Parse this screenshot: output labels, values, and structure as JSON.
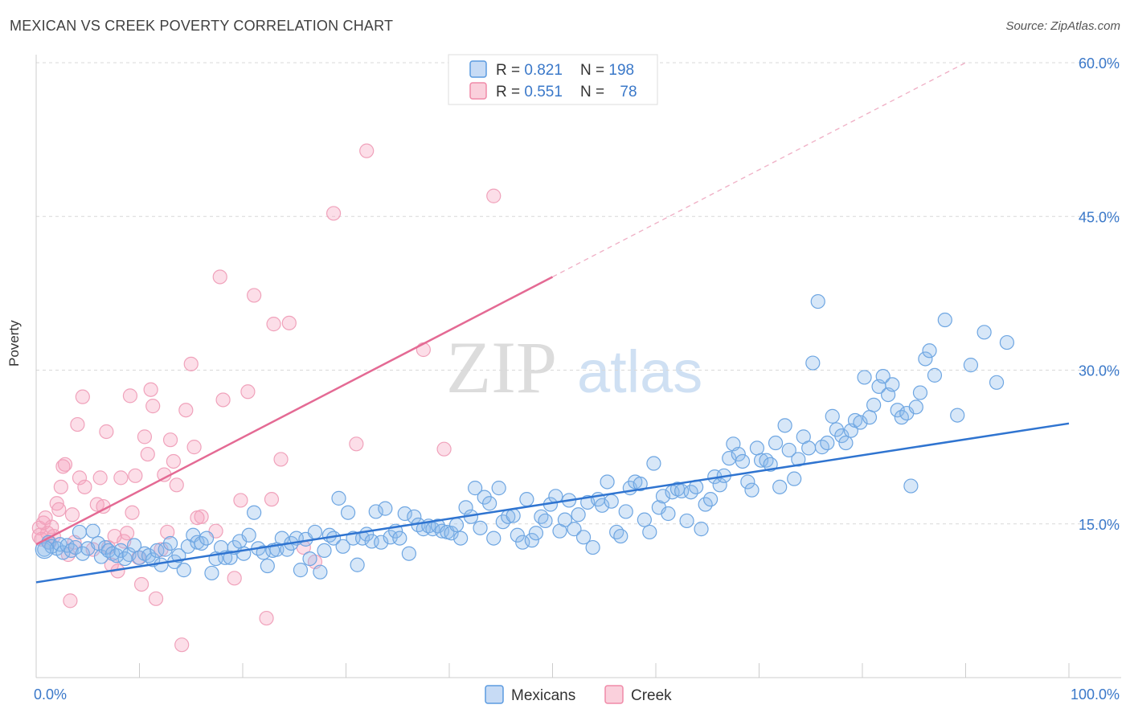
{
  "header": {
    "title": "MEXICAN VS CREEK POVERTY CORRELATION CHART",
    "source": "Source: ZipAtlas.com"
  },
  "watermark": {
    "zip": "ZIP",
    "atlas": "atlas"
  },
  "legend_top": {
    "rows": [
      {
        "r_label": "R = ",
        "r_value": "0.821",
        "n_label": "N = ",
        "n_value": "198",
        "color": "#5b9be0"
      },
      {
        "r_label": "R = ",
        "r_value": "0.551",
        "n_label": "N = ",
        "n_value": "78",
        "color": "#f08aa8"
      }
    ]
  },
  "legend_bottom": {
    "items": [
      "Mexicans",
      "Creek"
    ]
  },
  "chart_data": {
    "type": "scatter",
    "ylabel": "Poverty",
    "xlim": [
      0,
      100
    ],
    "ylim": [
      0,
      60
    ],
    "x_tick_labels": [
      "0.0%",
      "100.0%"
    ],
    "y_ticks": [
      15,
      30,
      45,
      60
    ],
    "y_tick_labels": [
      "15.0%",
      "30.0%",
      "45.0%",
      "60.0%"
    ],
    "series": [
      {
        "name": "Mexicans",
        "color": "#5b9be0",
        "trend": {
          "x": [
            0,
            100
          ],
          "y": [
            9.3,
            24.8
          ]
        },
        "points": [
          [
            0.8,
            12.5
          ],
          [
            1.2,
            13.2
          ],
          [
            1.5,
            12.8
          ],
          [
            2,
            12.6
          ],
          [
            2.3,
            13
          ],
          [
            2.6,
            12.2
          ],
          [
            3,
            12.9
          ],
          [
            3.4,
            12.4
          ],
          [
            3.8,
            12.7
          ],
          [
            4.2,
            14.2
          ],
          [
            4.5,
            12.1
          ],
          [
            5,
            12.6
          ],
          [
            5.5,
            14.3
          ],
          [
            6,
            13.1
          ],
          [
            6.3,
            11.8
          ],
          [
            6.7,
            12.7
          ],
          [
            7,
            12.4
          ],
          [
            7.4,
            12.1
          ],
          [
            7.8,
            11.9
          ],
          [
            8.2,
            12.4
          ],
          [
            8.6,
            11.6
          ],
          [
            9,
            12
          ],
          [
            9.5,
            12.9
          ],
          [
            10,
            11.7
          ],
          [
            10.5,
            12.1
          ],
          [
            10.9,
            11.9
          ],
          [
            11.3,
            11.5
          ],
          [
            11.7,
            12.4
          ],
          [
            12.1,
            11
          ],
          [
            12.5,
            12.5
          ],
          [
            13,
            13.1
          ],
          [
            13.4,
            11.3
          ],
          [
            13.8,
            11.9
          ],
          [
            14.3,
            10.5
          ],
          [
            14.7,
            12.8
          ],
          [
            15.2,
            13.9
          ],
          [
            15.6,
            13.2
          ],
          [
            16,
            13.1
          ],
          [
            16.5,
            13.6
          ],
          [
            17,
            10.2
          ],
          [
            17.4,
            11.6
          ],
          [
            17.9,
            12.7
          ],
          [
            18.3,
            11.7
          ],
          [
            18.8,
            11.7
          ],
          [
            19.2,
            12.7
          ],
          [
            19.7,
            13.3
          ],
          [
            20.1,
            12.1
          ],
          [
            20.6,
            13.9
          ],
          [
            21.1,
            16.1
          ],
          [
            21.5,
            12.6
          ],
          [
            22,
            12.2
          ],
          [
            22.4,
            10.9
          ],
          [
            22.9,
            12.4
          ],
          [
            23.3,
            12.5
          ],
          [
            23.8,
            13.6
          ],
          [
            24.3,
            12.5
          ],
          [
            24.7,
            13.1
          ],
          [
            25.2,
            13.6
          ],
          [
            25.6,
            10.5
          ],
          [
            26.1,
            13.5
          ],
          [
            26.5,
            11.6
          ],
          [
            27,
            14.2
          ],
          [
            27.5,
            10.3
          ],
          [
            27.9,
            12.4
          ],
          [
            28.4,
            13.9
          ],
          [
            28.8,
            13.6
          ],
          [
            29.3,
            17.5
          ],
          [
            29.7,
            12.8
          ],
          [
            30.2,
            16.1
          ],
          [
            30.7,
            13.6
          ],
          [
            31.1,
            11
          ],
          [
            31.6,
            13.6
          ],
          [
            32,
            14
          ],
          [
            32.5,
            13.3
          ],
          [
            32.9,
            16.2
          ],
          [
            33.4,
            13.2
          ],
          [
            33.8,
            16.5
          ],
          [
            34.3,
            13.7
          ],
          [
            34.8,
            14.3
          ],
          [
            35.2,
            13.6
          ],
          [
            35.7,
            16
          ],
          [
            36.1,
            12.1
          ],
          [
            36.6,
            15.7
          ],
          [
            37,
            14.9
          ],
          [
            37.5,
            14.5
          ],
          [
            38,
            14.8
          ],
          [
            38.4,
            14.5
          ],
          [
            38.9,
            14.8
          ],
          [
            39.3,
            14.3
          ],
          [
            39.8,
            14.2
          ],
          [
            40.2,
            14.1
          ],
          [
            40.7,
            14.9
          ],
          [
            41.1,
            13.6
          ],
          [
            41.6,
            16.6
          ],
          [
            42.1,
            15.7
          ],
          [
            42.5,
            18.5
          ],
          [
            43,
            14.6
          ],
          [
            43.4,
            17.6
          ],
          [
            43.9,
            17
          ],
          [
            44.3,
            13.6
          ],
          [
            44.8,
            18.5
          ],
          [
            45.2,
            15.2
          ],
          [
            45.7,
            15.7
          ],
          [
            46.2,
            15.8
          ],
          [
            46.6,
            13.9
          ],
          [
            47.1,
            13.2
          ],
          [
            47.5,
            17.4
          ],
          [
            48,
            13.4
          ],
          [
            48.4,
            14.1
          ],
          [
            48.9,
            15.7
          ],
          [
            49.3,
            15.3
          ],
          [
            49.8,
            16.9
          ],
          [
            50.3,
            17.7
          ],
          [
            50.7,
            14.3
          ],
          [
            51.2,
            15.4
          ],
          [
            51.6,
            17.3
          ],
          [
            52.1,
            14.5
          ],
          [
            52.5,
            15.9
          ],
          [
            53,
            13.7
          ],
          [
            53.4,
            17.1
          ],
          [
            53.9,
            12.7
          ],
          [
            54.4,
            17.4
          ],
          [
            54.8,
            16.8
          ],
          [
            55.3,
            19.1
          ],
          [
            55.7,
            17.2
          ],
          [
            56.2,
            14.2
          ],
          [
            56.6,
            13.8
          ],
          [
            57.1,
            16.2
          ],
          [
            57.5,
            18.5
          ],
          [
            58,
            19.1
          ],
          [
            58.5,
            18.9
          ],
          [
            58.9,
            15.4
          ],
          [
            59.4,
            14.2
          ],
          [
            59.8,
            20.9
          ],
          [
            60.3,
            16.6
          ],
          [
            60.7,
            17.7
          ],
          [
            61.2,
            16
          ],
          [
            61.6,
            18.1
          ],
          [
            62.1,
            18.4
          ],
          [
            62.5,
            18.2
          ],
          [
            63,
            15.3
          ],
          [
            63.4,
            18.1
          ],
          [
            63.9,
            18.6
          ],
          [
            64.4,
            14.5
          ],
          [
            64.8,
            16.9
          ],
          [
            65.3,
            17.4
          ],
          [
            65.7,
            19.6
          ],
          [
            66.2,
            18.8
          ],
          [
            66.6,
            19.7
          ],
          [
            67.1,
            21.4
          ],
          [
            67.5,
            22.8
          ],
          [
            68,
            21.8
          ],
          [
            68.4,
            21.1
          ],
          [
            68.9,
            19.1
          ],
          [
            69.3,
            18.3
          ],
          [
            69.8,
            22.4
          ],
          [
            70.2,
            21.2
          ],
          [
            70.7,
            21.2
          ],
          [
            71.1,
            20.8
          ],
          [
            71.6,
            22.9
          ],
          [
            72,
            18.6
          ],
          [
            72.5,
            24.6
          ],
          [
            72.9,
            22.2
          ],
          [
            73.4,
            19.4
          ],
          [
            73.8,
            21.3
          ],
          [
            74.3,
            23.5
          ],
          [
            74.8,
            22.4
          ],
          [
            75.2,
            30.7
          ],
          [
            75.7,
            36.7
          ],
          [
            76.1,
            22.5
          ],
          [
            76.6,
            22.9
          ],
          [
            77.1,
            25.5
          ],
          [
            77.5,
            24.2
          ],
          [
            78,
            23.6
          ],
          [
            78.4,
            22.9
          ],
          [
            78.9,
            24.1
          ],
          [
            79.3,
            25.1
          ],
          [
            79.8,
            24.9
          ],
          [
            80.2,
            29.3
          ],
          [
            80.7,
            25.4
          ],
          [
            81.1,
            26.6
          ],
          [
            81.6,
            28.4
          ],
          [
            82,
            29.4
          ],
          [
            82.5,
            27.6
          ],
          [
            82.9,
            28.6
          ],
          [
            83.4,
            26.1
          ],
          [
            83.8,
            25.4
          ],
          [
            84.3,
            25.8
          ],
          [
            84.7,
            18.7
          ],
          [
            85.2,
            26.4
          ],
          [
            85.6,
            27.8
          ],
          [
            86.1,
            31.1
          ],
          [
            86.5,
            31.9
          ],
          [
            87,
            29.5
          ],
          [
            88,
            34.9
          ],
          [
            89.2,
            25.6
          ],
          [
            90.5,
            30.5
          ],
          [
            91.8,
            33.7
          ],
          [
            93,
            28.8
          ],
          [
            94,
            32.7
          ]
        ]
      },
      {
        "name": "Creek",
        "color": "#f08aa8",
        "trend": {
          "x": [
            0,
            50
          ],
          "y": [
            13,
            39.1
          ]
        },
        "trend_extension": {
          "x": [
            50,
            90
          ],
          "y": [
            39.1,
            60
          ]
        },
        "points": [
          [
            0.3,
            14.6
          ],
          [
            0.5,
            13.5
          ],
          [
            0.7,
            15.1
          ],
          [
            0.9,
            15.6
          ],
          [
            1.1,
            14.1
          ],
          [
            1.3,
            13.2
          ],
          [
            1.5,
            14.7
          ],
          [
            1.7,
            13.8
          ],
          [
            2,
            17
          ],
          [
            2.2,
            16.4
          ],
          [
            2.4,
            18.6
          ],
          [
            2.6,
            20.6
          ],
          [
            2.8,
            20.8
          ],
          [
            3.1,
            12
          ],
          [
            3.3,
            7.5
          ],
          [
            3.5,
            15.9
          ],
          [
            3.7,
            13.2
          ],
          [
            4,
            24.7
          ],
          [
            4.2,
            19.5
          ],
          [
            4.5,
            27.4
          ],
          [
            4.7,
            18.6
          ],
          [
            5.5,
            12.5
          ],
          [
            5.9,
            16.9
          ],
          [
            6.2,
            19.5
          ],
          [
            6.5,
            16.7
          ],
          [
            6.8,
            24
          ],
          [
            7,
            12.7
          ],
          [
            7.3,
            11
          ],
          [
            7.6,
            13.8
          ],
          [
            7.9,
            10.4
          ],
          [
            8.2,
            19.5
          ],
          [
            8.5,
            13.3
          ],
          [
            8.8,
            14.1
          ],
          [
            9.1,
            27.5
          ],
          [
            9.3,
            16.1
          ],
          [
            9.6,
            19.7
          ],
          [
            9.9,
            11.7
          ],
          [
            10.2,
            9.1
          ],
          [
            10.5,
            23.5
          ],
          [
            10.8,
            21.8
          ],
          [
            11.1,
            28.1
          ],
          [
            11.3,
            26.5
          ],
          [
            11.6,
            7.7
          ],
          [
            12.1,
            12.5
          ],
          [
            12.4,
            19.8
          ],
          [
            12.7,
            14.2
          ],
          [
            13,
            23.2
          ],
          [
            13.3,
            21.1
          ],
          [
            13.6,
            18.8
          ],
          [
            14.1,
            3.2
          ],
          [
            14.5,
            26.1
          ],
          [
            15,
            30.6
          ],
          [
            15.3,
            22.5
          ],
          [
            15.6,
            15.6
          ],
          [
            16,
            15.7
          ],
          [
            17.4,
            14.3
          ],
          [
            17.8,
            39.1
          ],
          [
            18.1,
            27.1
          ],
          [
            19.2,
            9.7
          ],
          [
            19.8,
            17.3
          ],
          [
            20.5,
            27.9
          ],
          [
            21.1,
            37.3
          ],
          [
            22.3,
            5.8
          ],
          [
            22.8,
            17.4
          ],
          [
            23,
            34.5
          ],
          [
            23.7,
            21.3
          ],
          [
            24.5,
            34.6
          ],
          [
            25.9,
            12.7
          ],
          [
            27,
            11.3
          ],
          [
            28.8,
            45.3
          ],
          [
            31,
            22.8
          ],
          [
            32,
            51.4
          ],
          [
            37.5,
            32
          ],
          [
            39.5,
            22.3
          ],
          [
            44.3,
            47
          ]
        ]
      }
    ]
  }
}
